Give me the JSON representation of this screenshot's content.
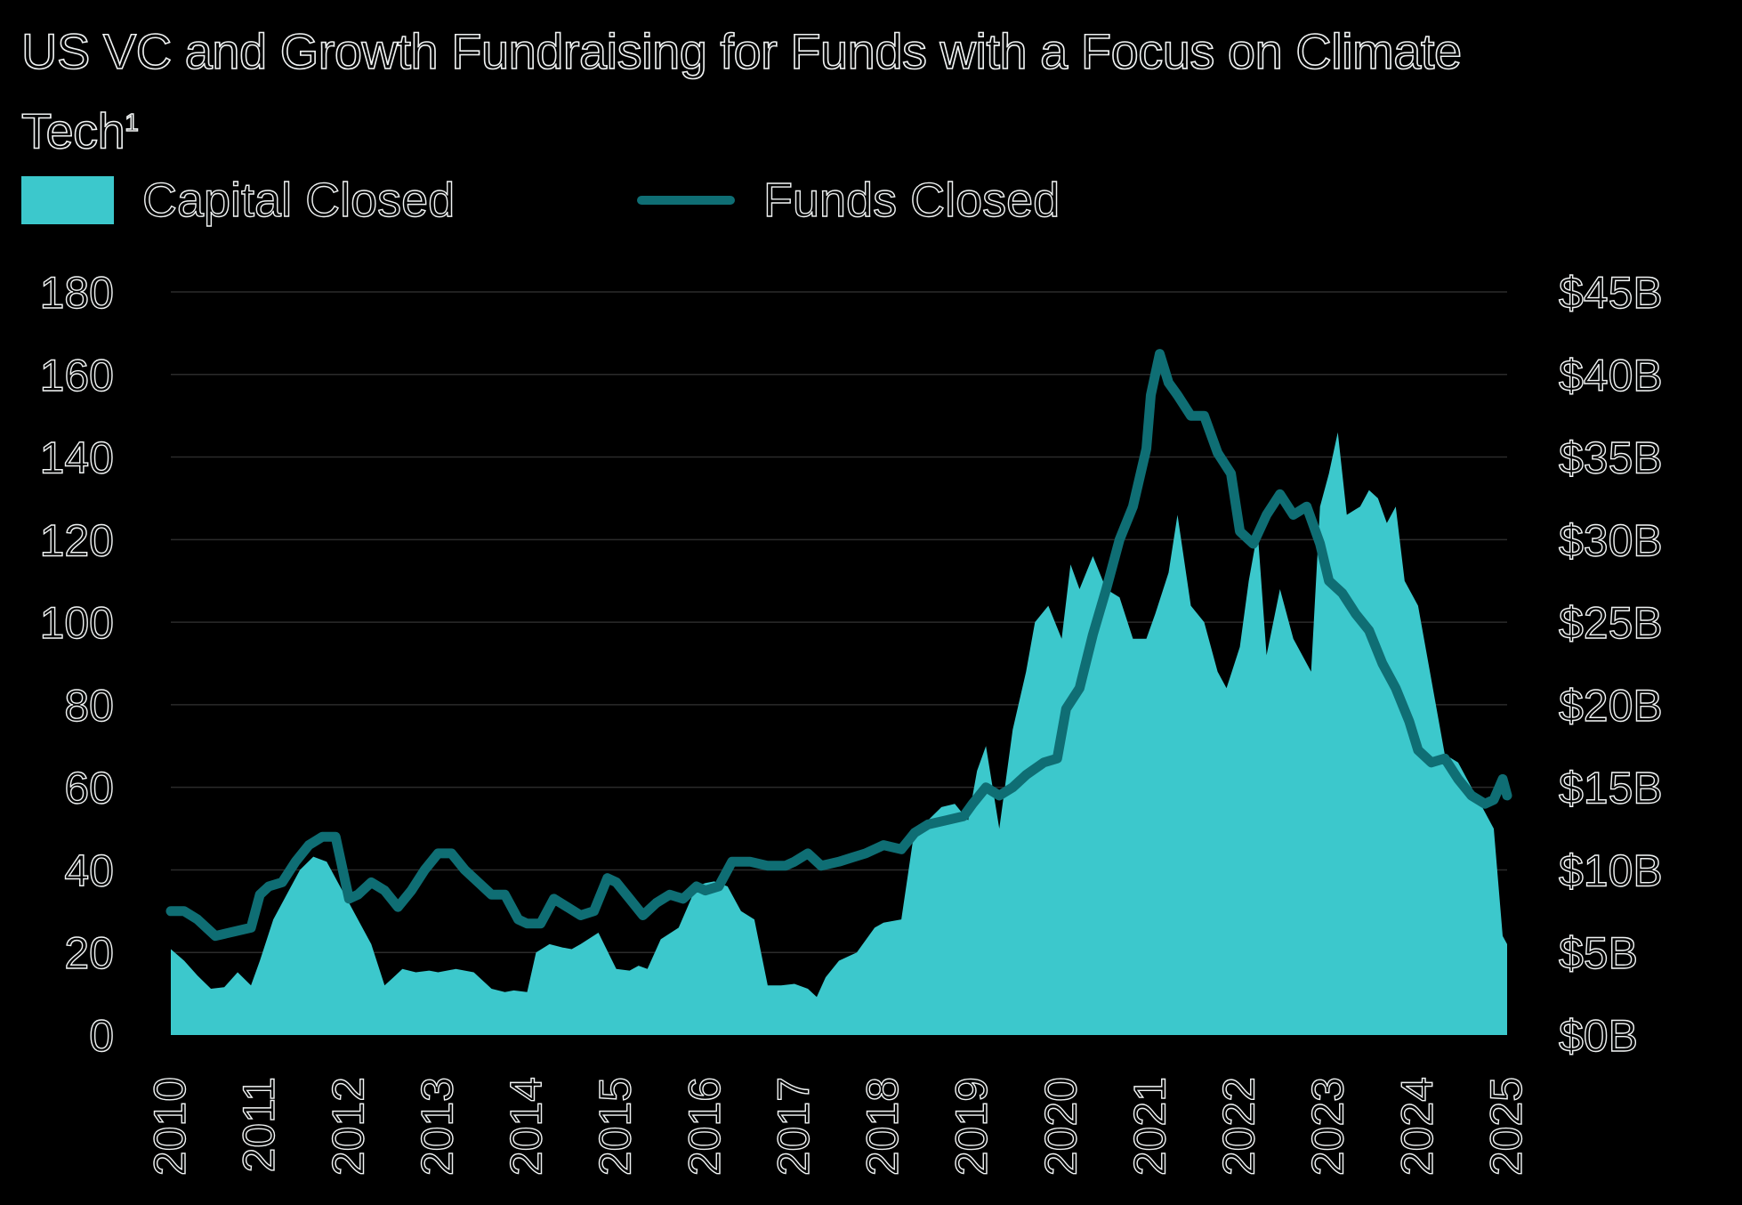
{
  "chart_data": {
    "type": "area+line",
    "title": "US VC and Growth Fundraising for Funds with a Focus on Climate Tech",
    "title_footnote": "1",
    "legend": [
      {
        "name": "Capital Closed",
        "kind": "area",
        "color": "#3cc8cc"
      },
      {
        "name": "Funds Closed",
        "kind": "line",
        "color": "#0f6e74"
      }
    ],
    "legend_position": "top-left",
    "left_axis": {
      "label": "",
      "min": 0,
      "max": 180,
      "ticks": [
        "0",
        "20",
        "40",
        "60",
        "80",
        "100",
        "120",
        "140",
        "160",
        "180"
      ]
    },
    "right_axis": {
      "label": "",
      "min": 0,
      "max": 45,
      "ticks": [
        "$0B",
        "$5B",
        "$10B",
        "$15B",
        "$20B",
        "$25B",
        "$30B",
        "$35B",
        "$40B",
        "$45B"
      ]
    },
    "x_axis": {
      "min": 2010,
      "max": 2025,
      "ticks": [
        "2010",
        "2011",
        "2012",
        "2013",
        "2014",
        "2015",
        "2016",
        "2017",
        "2018",
        "2019",
        "2020",
        "2021",
        "2022",
        "2023",
        "2024",
        "2025"
      ]
    },
    "grid": true,
    "series": [
      {
        "name": "Capital Closed",
        "axis": "right",
        "unit": "$B",
        "x": [
          2010.0,
          2010.15,
          2010.3,
          2010.45,
          2010.6,
          2010.75,
          2010.9,
          2011.0,
          2011.15,
          2011.3,
          2011.45,
          2011.6,
          2011.75,
          2011.85,
          2012.0,
          2012.1,
          2012.25,
          2012.4,
          2012.5,
          2012.6,
          2012.75,
          2012.9,
          2013.0,
          2013.2,
          2013.4,
          2013.6,
          2013.75,
          2013.85,
          2014.0,
          2014.1,
          2014.25,
          2014.4,
          2014.5,
          2014.6,
          2014.8,
          2015.0,
          2015.15,
          2015.25,
          2015.35,
          2015.5,
          2015.7,
          2015.9,
          2016.0,
          2016.1,
          2016.25,
          2016.4,
          2016.55,
          2016.7,
          2016.85,
          2017.0,
          2017.15,
          2017.25,
          2017.35,
          2017.5,
          2017.7,
          2017.9,
          2018.0,
          2018.2,
          2018.35,
          2018.5,
          2018.65,
          2018.8,
          2018.95,
          2019.05,
          2019.15,
          2019.3,
          2019.45,
          2019.6,
          2019.7,
          2019.85,
          2020.0,
          2020.1,
          2020.2,
          2020.35,
          2020.5,
          2020.65,
          2020.8,
          2020.95,
          2021.05,
          2021.2,
          2021.3,
          2021.45,
          2021.6,
          2021.75,
          2021.85,
          2022.0,
          2022.1,
          2022.2,
          2022.3,
          2022.45,
          2022.6,
          2022.75,
          2022.8,
          2022.9,
          2023.0,
          2023.1,
          2023.2,
          2023.35,
          2023.45,
          2023.55,
          2023.65,
          2023.75,
          2023.85,
          2024.0,
          2024.15,
          2024.3,
          2024.45,
          2024.6,
          2024.75,
          2024.85,
          2024.95,
          2025.0
        ],
        "values": [
          5.2,
          4.5,
          3.6,
          2.8,
          2.9,
          3.8,
          3.0,
          4.5,
          7.0,
          8.5,
          10.0,
          10.8,
          10.5,
          9.5,
          8.0,
          7.0,
          5.5,
          3.0,
          3.5,
          4.0,
          3.8,
          3.9,
          3.8,
          4.0,
          3.8,
          2.8,
          2.6,
          2.7,
          2.6,
          5.0,
          5.5,
          5.3,
          5.2,
          5.5,
          6.2,
          4.0,
          3.9,
          4.2,
          4.0,
          5.8,
          6.5,
          9.0,
          9.2,
          9.3,
          9.0,
          7.5,
          7.0,
          3.0,
          3.0,
          3.1,
          2.8,
          2.3,
          3.5,
          4.5,
          5.0,
          6.5,
          6.8,
          7.0,
          12.5,
          13.0,
          13.8,
          14.0,
          13.0,
          16.0,
          17.5,
          12.5,
          18.5,
          22.0,
          25.0,
          26.0,
          24.0,
          28.5,
          27.0,
          29.0,
          27.0,
          26.5,
          24.0,
          24.0,
          25.5,
          28.0,
          31.5,
          26.0,
          25.0,
          22.0,
          21.0,
          23.5,
          27.5,
          30.5,
          23.0,
          27.0,
          24.0,
          22.5,
          22.0,
          32.0,
          34.0,
          36.5,
          31.5,
          32.0,
          33.0,
          32.5,
          31.0,
          32.0,
          27.5,
          26.0,
          21.5,
          17.0,
          16.5,
          15.0,
          13.5,
          12.5,
          6.0,
          5.5
        ]
      },
      {
        "name": "Funds Closed",
        "axis": "left",
        "unit": "funds",
        "x": [
          2010.0,
          2010.15,
          2010.3,
          2010.5,
          2010.7,
          2010.9,
          2011.0,
          2011.1,
          2011.25,
          2011.4,
          2011.55,
          2011.7,
          2011.85,
          2012.0,
          2012.1,
          2012.25,
          2012.4,
          2012.55,
          2012.7,
          2012.85,
          2013.0,
          2013.15,
          2013.3,
          2013.45,
          2013.6,
          2013.75,
          2013.9,
          2014.0,
          2014.15,
          2014.3,
          2014.45,
          2014.6,
          2014.75,
          2014.9,
          2015.0,
          2015.15,
          2015.3,
          2015.45,
          2015.6,
          2015.75,
          2015.9,
          2016.0,
          2016.15,
          2016.3,
          2016.5,
          2016.7,
          2016.9,
          2017.0,
          2017.15,
          2017.3,
          2017.5,
          2017.65,
          2017.8,
          2018.0,
          2018.2,
          2018.35,
          2018.5,
          2018.7,
          2018.9,
          2019.0,
          2019.15,
          2019.3,
          2019.45,
          2019.6,
          2019.8,
          2019.95,
          2020.05,
          2020.2,
          2020.35,
          2020.5,
          2020.65,
          2020.8,
          2020.95,
          2021.0,
          2021.1,
          2021.2,
          2021.3,
          2021.45,
          2021.6,
          2021.75,
          2021.9,
          2022.0,
          2022.15,
          2022.3,
          2022.45,
          2022.6,
          2022.75,
          2022.9,
          2023.0,
          2023.15,
          2023.3,
          2023.45,
          2023.6,
          2023.75,
          2023.9,
          2024.0,
          2024.15,
          2024.3,
          2024.45,
          2024.6,
          2024.75,
          2024.85,
          2024.95,
          2025.0
        ],
        "values": [
          30,
          30,
          28,
          24,
          25,
          26,
          34,
          36,
          37,
          42,
          46,
          48,
          48,
          33,
          34,
          37,
          35,
          31,
          35,
          40,
          44,
          44,
          40,
          37,
          34,
          34,
          28,
          27,
          27,
          33,
          31,
          29,
          30,
          38,
          37,
          33,
          29,
          32,
          34,
          33,
          36,
          35,
          36,
          42,
          42,
          41,
          41,
          42,
          44,
          41,
          42,
          43,
          44,
          46,
          45,
          49,
          51,
          52,
          53,
          56,
          60,
          58,
          60,
          63,
          66,
          67,
          79,
          84,
          97,
          108,
          120,
          128,
          142,
          155,
          165,
          158,
          155,
          150,
          150,
          141,
          136,
          122,
          119,
          126,
          131,
          126,
          128,
          119,
          110,
          107,
          102,
          98,
          90,
          84,
          76,
          69,
          66,
          67,
          62,
          58,
          56,
          57,
          62,
          58
        ]
      }
    ]
  }
}
